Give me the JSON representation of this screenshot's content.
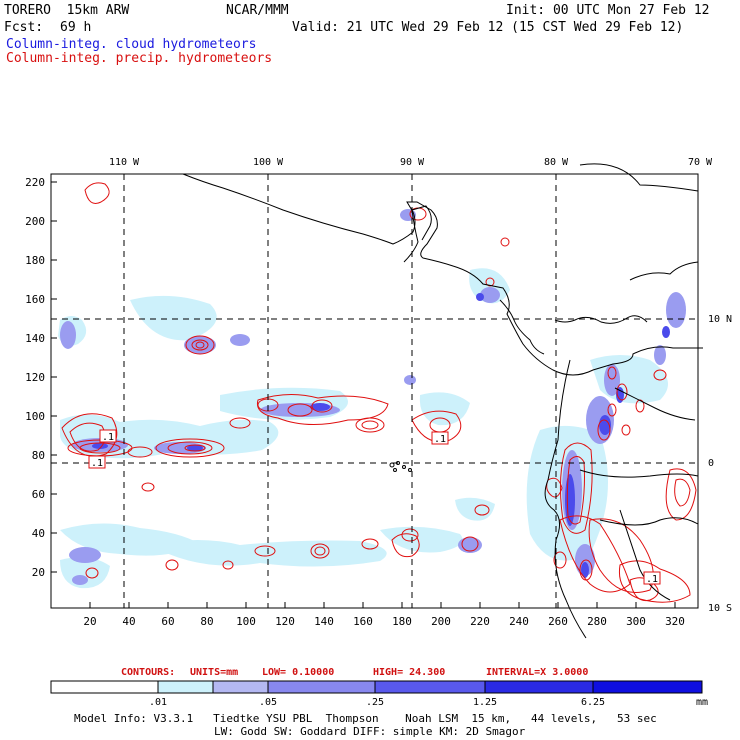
{
  "header": {
    "model": "TORERO  15km ARW",
    "org": "NCAR/MMM",
    "init": "Init: 00 UTC Mon 27 Feb 12",
    "fcst_label": "Fcst:",
    "fcst_hours": "69 h",
    "valid": "Valid: 21 UTC Wed 29 Feb 12 (15 CST Wed 29 Feb 12)",
    "field1": "Column-integ. cloud hydrometeors",
    "field2": "Column-integ. precip. hydrometeors"
  },
  "axes": {
    "top_lon_labels": [
      "110 W",
      "100 W",
      "90 W",
      "80 W",
      "70 W"
    ],
    "right_lat_labels": [
      "10 N",
      "0",
      "10 S"
    ],
    "y_ticks": [
      "220",
      "200",
      "180",
      "160",
      "140",
      "120",
      "100",
      "80",
      "60",
      "40",
      "20"
    ],
    "x_ticks": [
      "20",
      "40",
      "60",
      "80",
      "100",
      "120",
      "140",
      "160",
      "180",
      "200",
      "220",
      "240",
      "260",
      "280",
      "300",
      "320"
    ]
  },
  "contour_labels": [
    ".1",
    ".1",
    ".1",
    ".1"
  ],
  "contours_info": {
    "contours": "CONTOURS:",
    "units": "UNITS=mm",
    "low": "LOW= 0.10000",
    "high": "HIGH= 24.300",
    "interval": "INTERVAL=X 3.0000"
  },
  "colorbar": {
    "labels": [
      ".01",
      ".05",
      ".25",
      "1.25",
      "6.25"
    ],
    "unit": "mm",
    "colors": [
      "#ffffff",
      "#cdf1fb",
      "#b4b8f2",
      "#8888ef",
      "#5959ec",
      "#2a2ae4",
      "#0f0fe0"
    ]
  },
  "model_info": {
    "line1": "Model Info: V3.3.1   Tiedtke YSU PBL  Thompson    Noah LSM  15 km,   44 levels,   53 sec",
    "line2": "LW: Godd SW: Goddard DIFF: simple KM: 2D Smagor"
  }
}
